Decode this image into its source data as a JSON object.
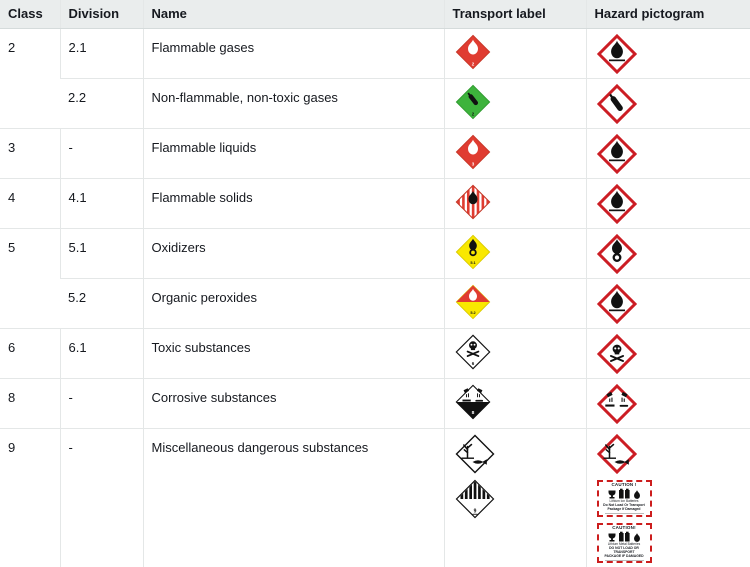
{
  "colors": {
    "header_bg": "#eaeded",
    "grid_border": "#e4e7e7",
    "transport_red": "#e03c31",
    "transport_red_edge": "#c53727",
    "transport_green": "#3db33c",
    "transport_green_edge": "#2f9a2f",
    "transport_yellow": "#f9e800",
    "transport_yellow_edge": "#d9ca00",
    "ghs_red": "#cc1d24",
    "glyph_black": "#111111",
    "caution_border": "#cc1d1d"
  },
  "table": {
    "columns": [
      "Class",
      "Division",
      "Name",
      "Transport label",
      "Hazard pictogram"
    ],
    "rows": [
      {
        "class": "2",
        "division": "2.1",
        "name": "Flammable gases",
        "transport": [
          {
            "type": "flammable-gas",
            "number": "2"
          }
        ],
        "hazard": [
          "ghs-flame"
        ]
      },
      {
        "class": "",
        "division": "2.2",
        "name": "Non-flammable, non-toxic gases",
        "transport": [
          {
            "type": "non-flammable-gas",
            "number": "2"
          }
        ],
        "hazard": [
          "ghs-gas-cylinder"
        ]
      },
      {
        "class": "3",
        "division": "-",
        "name": "Flammable liquids",
        "transport": [
          {
            "type": "flammable-liquid",
            "number": "3"
          }
        ],
        "hazard": [
          "ghs-flame"
        ]
      },
      {
        "class": "4",
        "division": "4.1",
        "name": "Flammable solids",
        "transport": [
          {
            "type": "flammable-solid",
            "number": "4"
          }
        ],
        "hazard": [
          "ghs-flame"
        ]
      },
      {
        "class": "5",
        "division": "5.1",
        "name": "Oxidizers",
        "transport": [
          {
            "type": "oxidizer",
            "number": "5.1"
          }
        ],
        "hazard": [
          "ghs-flame-over-circle"
        ]
      },
      {
        "class": "",
        "division": "5.2",
        "name": "Organic peroxides",
        "transport": [
          {
            "type": "organic-peroxide",
            "number": "5.2"
          }
        ],
        "hazard": [
          "ghs-flame"
        ]
      },
      {
        "class": "6",
        "division": "6.1",
        "name": "Toxic substances",
        "transport": [
          {
            "type": "toxic",
            "number": "6"
          }
        ],
        "hazard": [
          "ghs-skull-crossbones"
        ]
      },
      {
        "class": "8",
        "division": "-",
        "name": "Corrosive substances",
        "transport": [
          {
            "type": "corrosive",
            "number": "8"
          }
        ],
        "hazard": [
          "ghs-corrosion"
        ]
      },
      {
        "class": "9",
        "division": "-",
        "name": "Miscellaneous dangerous substances",
        "transport": [
          {
            "type": "environment-mark",
            "number": ""
          },
          {
            "type": "misc-class9",
            "number": "9"
          }
        ],
        "hazard": [
          "ghs-environment",
          "lithium-ion-caution",
          "lithium-metal-caution"
        ]
      }
    ]
  },
  "caution_labels": {
    "lithium-ion-caution": {
      "title": "CAUTION !",
      "battery": "Lithium Ion Batteries",
      "warning1": "Do Not Load Or Transport",
      "warning2": "Package If Damaged"
    },
    "lithium-metal-caution": {
      "title": "CAUTION!",
      "battery": "Lithium Metal Batteries",
      "warning1": "DO NOT LOAD OR TRANSPORT",
      "warning2": "PACKAGE IF DAMAGED"
    }
  }
}
